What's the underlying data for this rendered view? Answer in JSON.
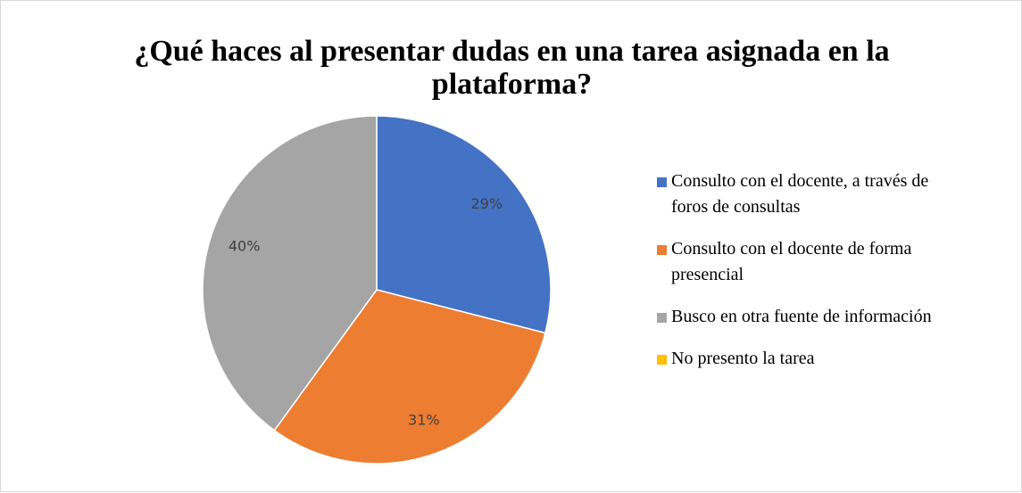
{
  "chart_data": {
    "type": "pie",
    "title": "¿Qué haces al presentar dudas en una tarea asignada en la plataforma?",
    "categories": [
      "Consulto con el docente, a través de foros de consultas",
      "Consulto con el docente de forma presencial",
      "Busco en otra fuente de información",
      "No presento la tarea"
    ],
    "values": [
      29,
      31,
      40,
      0
    ],
    "value_labels": [
      "29%",
      "31%",
      "40%",
      null
    ],
    "colors": [
      "#4472c4",
      "#ed7d31",
      "#a5a5a5",
      "#ffc000"
    ],
    "legend": "right"
  }
}
